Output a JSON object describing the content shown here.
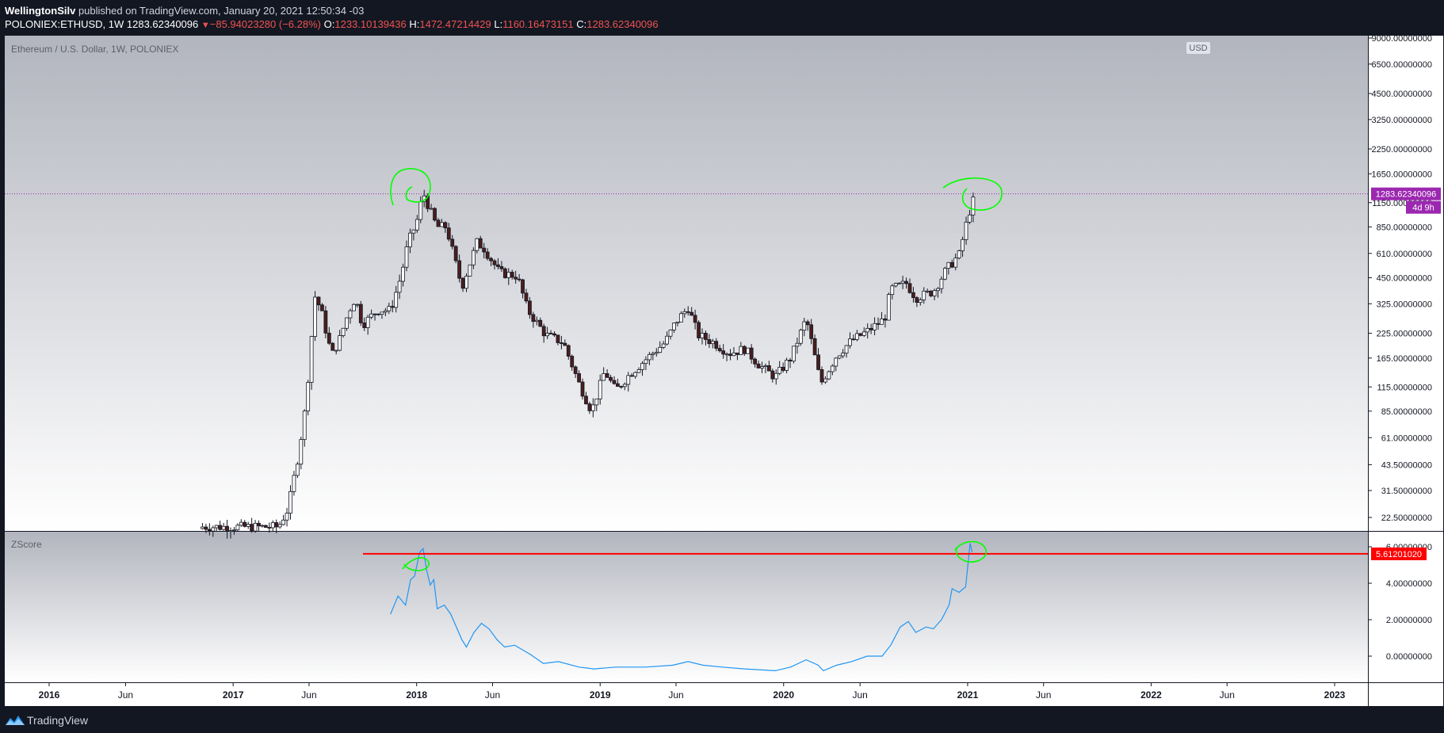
{
  "header": {
    "author": "WellingtonSilv",
    "published_text": " published on TradingView.com, January 20, 2021 12:50:34 -03",
    "symbol": "POLONIEX:ETHUSD, 1W",
    "last": "1283.62340096",
    "change": "−85.94023280 (−6.28%)",
    "o_label": "O:",
    "o_value": "1233.10139436",
    "h_label": "H:",
    "h_value": "1472.47214429",
    "l_label": "L:",
    "l_value": "1160.16473151",
    "c_label": "C:",
    "c_value": "1283.62340096"
  },
  "footer": {
    "brand": "TradingView",
    "logo_icon": "tradingview-logo-icon"
  },
  "colors": {
    "up": "#ffffff",
    "down": "#4a1e1e",
    "wick": "#131722",
    "price_label": "#9c27b0",
    "zscore_line": "#2196f3",
    "threshold": "#ff0000",
    "highlight_circle": "#00ff00"
  },
  "chart_data": [
    {
      "type": "candlestick",
      "title": "Ethereum / U.S. Dollar, 1W, POLONIEX",
      "y_scale": "log",
      "y_ticks": [
        "9000.00000000",
        "6500.00000000",
        "4500.00000000",
        "3250.00000000",
        "2250.00000000",
        "1650.00000000",
        "1150.00000000",
        "850.00000000",
        "610.00000000",
        "450.00000000",
        "325.00000000",
        "225.00000000",
        "165.00000000",
        "115.00000000",
        "85.00000000",
        "61.00000000",
        "43.50000000",
        "31.50000000",
        "22.50000000"
      ],
      "currency": "USD",
      "last_price_label": "1283.62340096",
      "countdown": "4d 9h",
      "close_keypoints": [
        {
          "date": "2016-11",
          "close": 20
        },
        {
          "date": "2017-04",
          "close": 20
        },
        {
          "date": "2017-04-20",
          "close": 25
        },
        {
          "date": "2017-05-10",
          "close": 48
        },
        {
          "date": "2017-05-25",
          "close": 90
        },
        {
          "date": "2017-06-05",
          "close": 200
        },
        {
          "date": "2017-06-12",
          "close": 360
        },
        {
          "date": "2017-06-25",
          "close": 300
        },
        {
          "date": "2017-07-16",
          "close": 170
        },
        {
          "date": "2017-08-01",
          "close": 210
        },
        {
          "date": "2017-08-20",
          "close": 300
        },
        {
          "date": "2017-09-01",
          "close": 350
        },
        {
          "date": "2017-09-15",
          "close": 250
        },
        {
          "date": "2017-10-15",
          "close": 300
        },
        {
          "date": "2017-11-10",
          "close": 300
        },
        {
          "date": "2017-12-01",
          "close": 460
        },
        {
          "date": "2017-12-15",
          "close": 700
        },
        {
          "date": "2018-01-01",
          "close": 900
        },
        {
          "date": "2018-01-14",
          "close": 1300
        },
        {
          "date": "2018-02-10",
          "close": 850
        },
        {
          "date": "2018-03-01",
          "close": 850
        },
        {
          "date": "2018-04-01",
          "close": 400
        },
        {
          "date": "2018-05-01",
          "close": 700
        },
        {
          "date": "2018-05-15",
          "close": 650
        },
        {
          "date": "2018-06-15",
          "close": 480
        },
        {
          "date": "2018-07-20",
          "close": 460
        },
        {
          "date": "2018-08-10",
          "close": 300
        },
        {
          "date": "2018-09-15",
          "close": 220
        },
        {
          "date": "2018-10-20",
          "close": 200
        },
        {
          "date": "2018-11-20",
          "close": 120
        },
        {
          "date": "2018-12-15",
          "close": 85
        },
        {
          "date": "2019-01-10",
          "close": 140
        },
        {
          "date": "2019-02-01",
          "close": 110
        },
        {
          "date": "2019-03-01",
          "close": 135
        },
        {
          "date": "2019-04-10",
          "close": 170
        },
        {
          "date": "2019-05-10",
          "close": 200
        },
        {
          "date": "2019-06-01",
          "close": 260
        },
        {
          "date": "2019-06-25",
          "close": 310
        },
        {
          "date": "2019-07-15",
          "close": 220
        },
        {
          "date": "2019-08-15",
          "close": 200
        },
        {
          "date": "2019-09-15",
          "close": 175
        },
        {
          "date": "2019-10-15",
          "close": 185
        },
        {
          "date": "2019-11-15",
          "close": 150
        },
        {
          "date": "2019-12-15",
          "close": 130
        },
        {
          "date": "2020-01-15",
          "close": 165
        },
        {
          "date": "2020-02-15",
          "close": 270
        },
        {
          "date": "2020-03-15",
          "close": 120
        },
        {
          "date": "2020-04-15",
          "close": 170
        },
        {
          "date": "2020-05-15",
          "close": 205
        },
        {
          "date": "2020-06-15",
          "close": 230
        },
        {
          "date": "2020-07-20",
          "close": 270
        },
        {
          "date": "2020-08-01",
          "close": 390
        },
        {
          "date": "2020-09-01",
          "close": 420
        },
        {
          "date": "2020-09-20",
          "close": 350
        },
        {
          "date": "2020-10-25",
          "close": 380
        },
        {
          "date": "2020-11-20",
          "close": 500
        },
        {
          "date": "2020-12-15",
          "close": 600
        },
        {
          "date": "2021-01-03",
          "close": 1000
        },
        {
          "date": "2021-01-17",
          "close": 1283.6
        }
      ]
    },
    {
      "type": "line",
      "title": "ZScore",
      "y_ticks": [
        "6.00000000",
        "4.00000000",
        "2.00000000",
        "0.00000000"
      ],
      "threshold_label": "5.61201020",
      "threshold_value": 5.612,
      "points": [
        {
          "date": "2017-11-10",
          "z": 2.3
        },
        {
          "date": "2017-11-25",
          "z": 3.3
        },
        {
          "date": "2017-12-10",
          "z": 2.8
        },
        {
          "date": "2017-12-20",
          "z": 4.2
        },
        {
          "date": "2017-12-28",
          "z": 4.4
        },
        {
          "date": "2018-01-07",
          "z": 5.7
        },
        {
          "date": "2018-01-14",
          "z": 5.9
        },
        {
          "date": "2018-01-21",
          "z": 4.7
        },
        {
          "date": "2018-01-28",
          "z": 3.9
        },
        {
          "date": "2018-02-04",
          "z": 4.2
        },
        {
          "date": "2018-02-11",
          "z": 2.6
        },
        {
          "date": "2018-02-25",
          "z": 2.8
        },
        {
          "date": "2018-03-10",
          "z": 2.3
        },
        {
          "date": "2018-04-01",
          "z": 0.9
        },
        {
          "date": "2018-04-10",
          "z": 0.5
        },
        {
          "date": "2018-04-25",
          "z": 1.3
        },
        {
          "date": "2018-05-10",
          "z": 1.8
        },
        {
          "date": "2018-05-25",
          "z": 1.5
        },
        {
          "date": "2018-06-10",
          "z": 0.9
        },
        {
          "date": "2018-06-25",
          "z": 0.5
        },
        {
          "date": "2018-07-15",
          "z": 0.6
        },
        {
          "date": "2018-08-15",
          "z": 0.1
        },
        {
          "date": "2018-09-10",
          "z": -0.4
        },
        {
          "date": "2018-10-10",
          "z": -0.3
        },
        {
          "date": "2018-11-20",
          "z": -0.6
        },
        {
          "date": "2018-12-20",
          "z": -0.7
        },
        {
          "date": "2019-02-01",
          "z": -0.6
        },
        {
          "date": "2019-04-01",
          "z": -0.6
        },
        {
          "date": "2019-05-25",
          "z": -0.5
        },
        {
          "date": "2019-06-25",
          "z": -0.3
        },
        {
          "date": "2019-07-25",
          "z": -0.5
        },
        {
          "date": "2019-09-01",
          "z": -0.6
        },
        {
          "date": "2019-10-15",
          "z": -0.7
        },
        {
          "date": "2019-12-15",
          "z": -0.8
        },
        {
          "date": "2020-01-15",
          "z": -0.6
        },
        {
          "date": "2020-02-15",
          "z": -0.2
        },
        {
          "date": "2020-03-10",
          "z": -0.5
        },
        {
          "date": "2020-03-20",
          "z": -0.8
        },
        {
          "date": "2020-04-15",
          "z": -0.5
        },
        {
          "date": "2020-05-15",
          "z": -0.3
        },
        {
          "date": "2020-06-15",
          "z": 0.0
        },
        {
          "date": "2020-07-15",
          "z": 0.0
        },
        {
          "date": "2020-08-01",
          "z": 0.6
        },
        {
          "date": "2020-08-20",
          "z": 1.6
        },
        {
          "date": "2020-09-05",
          "z": 1.9
        },
        {
          "date": "2020-09-20",
          "z": 1.3
        },
        {
          "date": "2020-10-10",
          "z": 1.6
        },
        {
          "date": "2020-10-25",
          "z": 1.5
        },
        {
          "date": "2020-11-10",
          "z": 2.0
        },
        {
          "date": "2020-11-25",
          "z": 2.8
        },
        {
          "date": "2020-12-01",
          "z": 3.7
        },
        {
          "date": "2020-12-15",
          "z": 3.5
        },
        {
          "date": "2020-12-28",
          "z": 3.8
        },
        {
          "date": "2021-01-06",
          "z": 6.2
        },
        {
          "date": "2021-01-10",
          "z": 5.7
        }
      ]
    }
  ],
  "x_axis": {
    "ticks": [
      {
        "label": "2016",
        "date": "2016-01-01",
        "year": true
      },
      {
        "label": "Jun",
        "date": "2016-06-01",
        "year": false
      },
      {
        "label": "2017",
        "date": "2017-01-01",
        "year": true
      },
      {
        "label": "Jun",
        "date": "2017-06-01",
        "year": false
      },
      {
        "label": "2018",
        "date": "2018-01-01",
        "year": true
      },
      {
        "label": "Jun",
        "date": "2018-06-01",
        "year": false
      },
      {
        "label": "2019",
        "date": "2019-01-01",
        "year": true
      },
      {
        "label": "Jun",
        "date": "2019-06-01",
        "year": false
      },
      {
        "label": "2020",
        "date": "2020-01-01",
        "year": true
      },
      {
        "label": "Jun",
        "date": "2020-06-01",
        "year": false
      },
      {
        "label": "2021",
        "date": "2021-01-01",
        "year": true
      },
      {
        "label": "Jun",
        "date": "2021-06-01",
        "year": false
      },
      {
        "label": "2022",
        "date": "2022-01-01",
        "year": true
      },
      {
        "label": "Jun",
        "date": "2022-06-01",
        "year": false
      },
      {
        "label": "2023",
        "date": "2023-01-01",
        "year": true
      }
    ]
  }
}
